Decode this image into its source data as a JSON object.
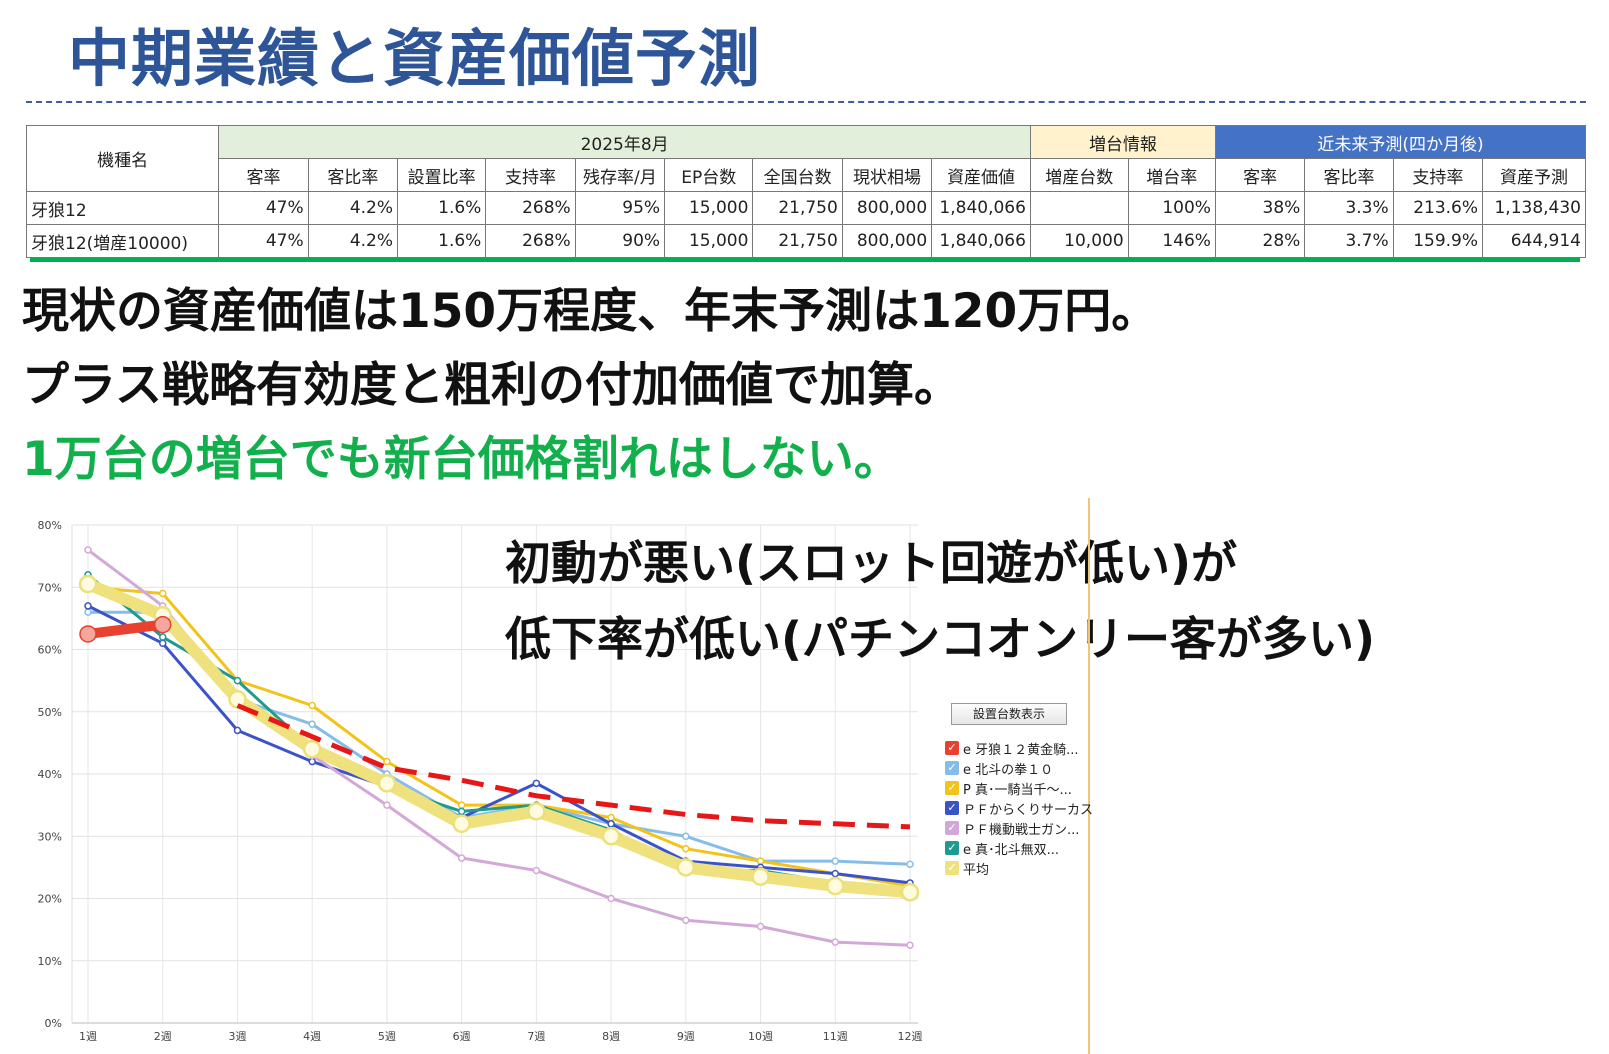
{
  "title": "中期業績と資産価値予測",
  "table": {
    "name_header": "機種名",
    "group_period": "2025年8月",
    "group_increase": "増台情報",
    "group_forecast": "近未来予測(四か月後)",
    "columns": [
      "客率",
      "客比率",
      "設置比率",
      "支持率",
      "残存率/月",
      "EP台数",
      "全国台数",
      "現状相場",
      "資産価値",
      "増産台数",
      "増台率",
      "客率",
      "客比率",
      "支持率",
      "資産予測"
    ],
    "rows": [
      {
        "name": "牙狼12",
        "cells": [
          "47%",
          "4.2%",
          "1.6%",
          "268%",
          "95%",
          "15,000",
          "21,750",
          "800,000",
          "1,840,066",
          "",
          "100%",
          "38%",
          "3.3%",
          "213.6%",
          "1,138,430"
        ]
      },
      {
        "name": "牙狼12(増産10000)",
        "cells": [
          "47%",
          "4.2%",
          "1.6%",
          "268%",
          "90%",
          "15,000",
          "21,750",
          "800,000",
          "1,840,066",
          "10,000",
          "146%",
          "28%",
          "3.7%",
          "159.9%",
          "644,914"
        ]
      }
    ]
  },
  "messages": {
    "line1": "現状の資産価値は150万程度、年末予測は120万円。",
    "line2": "プラス戦略有効度と粗利の付加価値で加算。",
    "line3": "1万台の増台でも新台価格割れはしない。"
  },
  "chart_note": {
    "line1": "初動が悪い(スロット回遊が低い)が",
    "line2": "低下率が低い(パチンコオンリー客が多い)"
  },
  "legend_button": "設置台数表示",
  "colors": {
    "title": "#2e5597",
    "green_text": "#12b04c",
    "forecast_header": "#4472c4",
    "period_header": "#e2efda",
    "increase_header": "#fff2cc"
  },
  "chart_data": {
    "type": "line",
    "categories": [
      "1週",
      "2週",
      "3週",
      "4週",
      "5週",
      "6週",
      "7週",
      "8週",
      "9週",
      "10週",
      "11週",
      "12週"
    ],
    "ylim": [
      0,
      80
    ],
    "y_ticks": [
      "0%",
      "10%",
      "20%",
      "30%",
      "40%",
      "50%",
      "60%",
      "70%",
      "80%"
    ],
    "grid": true,
    "legend_position": "right",
    "series": [
      {
        "name": "e 牙狼１２黄金騎...",
        "color": "#e8412f",
        "values": [
          62.5,
          64,
          null,
          null,
          null,
          null,
          null,
          null,
          null,
          null,
          null,
          null
        ]
      },
      {
        "name": "e 北斗の拳１０",
        "color": "#86bde8",
        "values": [
          66,
          66,
          52,
          48,
          40,
          33,
          35,
          32,
          30,
          26,
          26,
          25.5
        ]
      },
      {
        "name": "P 真･一騎当千～...",
        "color": "#f2c31a",
        "values": [
          70,
          69,
          55,
          51,
          42,
          35,
          35,
          33,
          28,
          26,
          24,
          22
        ]
      },
      {
        "name": "ＰＦからくりサーカス",
        "color": "#3b53c9",
        "values": [
          67,
          61,
          47,
          42,
          38,
          33,
          38.5,
          32,
          26,
          25,
          24,
          22.5
        ]
      },
      {
        "name": "ＰＦ機動戦士ガン...",
        "color": "#d3a8d8",
        "values": [
          76,
          67,
          52,
          43,
          35,
          26.5,
          24.5,
          20,
          16.5,
          15.5,
          13,
          12.5
        ]
      },
      {
        "name": "e 真･北斗無双...",
        "color": "#1f9a91",
        "values": [
          72,
          62,
          55,
          44,
          38,
          34,
          35,
          31,
          24.5,
          24.5,
          22.5,
          21.5
        ]
      },
      {
        "name": "平均",
        "color": "#efe17d",
        "values": [
          70.5,
          65.5,
          52,
          44,
          38.5,
          32,
          34,
          30,
          25,
          23.5,
          22,
          21
        ]
      }
    ],
    "forecast_line": {
      "color": "#e81717",
      "style": "dashed",
      "values": [
        null,
        null,
        51,
        46,
        41,
        39,
        36.5,
        35,
        33.5,
        32.5,
        32,
        31.5
      ]
    }
  }
}
